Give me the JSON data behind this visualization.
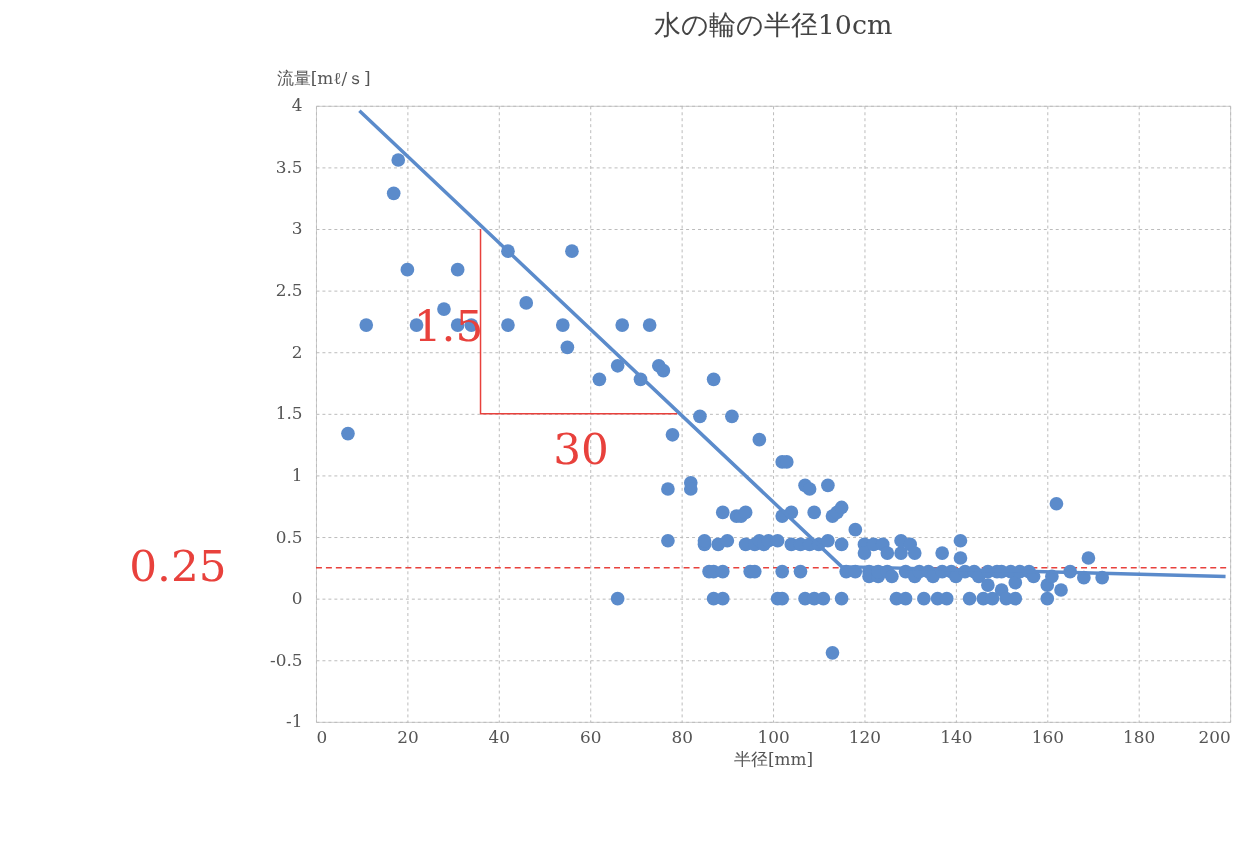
{
  "chart_data": {
    "type": "scatter",
    "title": "水の輪の半径10cm",
    "xlabel": "半径[mm]",
    "ylabel": "流量[mℓ/ｓ]",
    "xlim": [
      0,
      200
    ],
    "xticks": [
      0,
      20,
      40,
      60,
      80,
      100,
      120,
      140,
      160,
      180,
      200
    ],
    "ylim": [
      -1,
      4
    ],
    "yticks": [
      -1,
      -0.5,
      0,
      0.5,
      1,
      1.5,
      2,
      2.5,
      3,
      3.5,
      4
    ],
    "grid": true,
    "marker": "circle",
    "series": [
      {
        "color": "#5b8bcb",
        "x": [
          7,
          11,
          17,
          18,
          20,
          22,
          28,
          31,
          31,
          34,
          42,
          42,
          46,
          54,
          55,
          56,
          66,
          67,
          62,
          71,
          73,
          75,
          76,
          78,
          77,
          77,
          82,
          82,
          84,
          85,
          85,
          87,
          91,
          86,
          87,
          87,
          89,
          66,
          89,
          88,
          89,
          90,
          92,
          93,
          94,
          94,
          95,
          96,
          96,
          97,
          98,
          99,
          97,
          101,
          102,
          102,
          103,
          101,
          102,
          102,
          104,
          104,
          106,
          106,
          107,
          108,
          107,
          109,
          109,
          108,
          110,
          111,
          112,
          112,
          113,
          114,
          115,
          113,
          115,
          115,
          116,
          118,
          118,
          120,
          120,
          121,
          121,
          122,
          123,
          123,
          124,
          125,
          125,
          126,
          127,
          128,
          128,
          129,
          129,
          130,
          131,
          131,
          132,
          133,
          134,
          135,
          136,
          137,
          137,
          138,
          139,
          140,
          141,
          141,
          142,
          143,
          144,
          145,
          146,
          147,
          147,
          148,
          149,
          150,
          150,
          151,
          152,
          153,
          153,
          154,
          156,
          157,
          160,
          160,
          161,
          162,
          163,
          165,
          168,
          169,
          172
        ],
        "values": [
          1.34,
          2.22,
          3.29,
          3.56,
          2.67,
          2.22,
          2.35,
          2.67,
          2.22,
          2.22,
          2.82,
          2.22,
          2.4,
          2.22,
          2.04,
          2.82,
          1.89,
          2.22,
          1.78,
          1.78,
          2.22,
          1.89,
          1.85,
          1.33,
          0.89,
          0.47,
          0.94,
          0.89,
          1.48,
          0.44,
          0.47,
          1.78,
          1.48,
          0.22,
          0.22,
          0,
          0,
          0,
          0.7,
          0.44,
          0.22,
          0.47,
          0.67,
          0.67,
          0.7,
          0.44,
          0.22,
          0.22,
          0.44,
          0.47,
          0.44,
          0.47,
          1.29,
          0.47,
          0.67,
          1.11,
          1.11,
          0,
          0,
          0.22,
          0.7,
          0.44,
          0.44,
          0.22,
          0.92,
          0.89,
          0,
          0,
          0.7,
          0.44,
          0.44,
          0,
          0.92,
          0.47,
          0.67,
          0.7,
          0.74,
          -0.44,
          0.44,
          0,
          0.22,
          0.22,
          0.56,
          0.44,
          0.37,
          0.22,
          0.18,
          0.44,
          0.18,
          0.22,
          0.44,
          0.37,
          0.22,
          0.18,
          0,
          0.37,
          0.47,
          0.22,
          0,
          0.44,
          0.18,
          0.37,
          0.22,
          0,
          0.22,
          0.18,
          0,
          0.37,
          0.22,
          0,
          0.22,
          0.18,
          0.47,
          0.33,
          0.22,
          0,
          0.22,
          0.18,
          0,
          0.11,
          0.22,
          0,
          0.22,
          0.07,
          0.22,
          0,
          0.22,
          0,
          0.13,
          0.22,
          0.22,
          0.18,
          0,
          0.11,
          0.18,
          0.77,
          0.07,
          0.22,
          0.17,
          0.33,
          0.17
        ]
      },
      {
        "type": "line",
        "color": "#5b8bcb",
        "marker": "none",
        "x": [
          9.5,
          115,
          199
        ],
        "values": [
          3.96,
          0.26,
          0.18
        ]
      },
      {
        "type": "line",
        "color": "#e8413c",
        "marker": "none",
        "x": [
          36,
          36,
          79
        ],
        "values": [
          3.0,
          1.5,
          1.5
        ]
      }
    ],
    "ref_lines": [
      {
        "axis": "y",
        "value": 0.25,
        "label": "0.25",
        "color": "#e8413c",
        "line_style": "dashed"
      }
    ],
    "annotations": [
      {
        "text": "1.5",
        "x": 29,
        "y": 2.2
      },
      "30"
    ]
  }
}
